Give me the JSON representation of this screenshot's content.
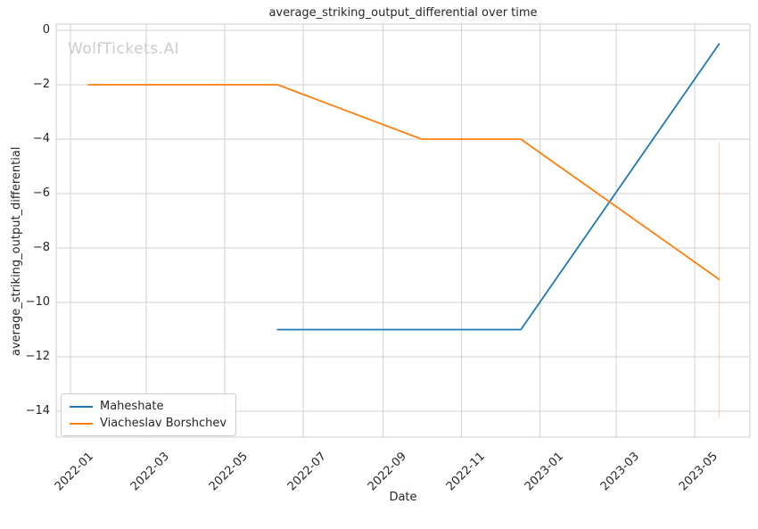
{
  "figure": {
    "watermark": "WolfTickets.AI"
  },
  "chart_data": {
    "type": "line",
    "title": "average_striking_output_differential over time",
    "xlabel": "Date",
    "ylabel": "average_striking_output_differential",
    "x_tick_labels": [
      "2022-01",
      "2022-03",
      "2022-05",
      "2022-07",
      "2022-09",
      "2022-11",
      "2023-01",
      "2023-03",
      "2023-05"
    ],
    "y_ticks": [
      0,
      -2,
      -4,
      -6,
      -8,
      -10,
      -12,
      -14
    ],
    "xlim": [
      "2021-12-21",
      "2023-06-13"
    ],
    "ylim": [
      -14.95,
      0.23
    ],
    "grid": true,
    "legend_position": "lower left",
    "series": [
      {
        "name": "Maheshate",
        "color": "#1f77b4",
        "points": [
          {
            "date": "2022-06-11",
            "value": -11
          },
          {
            "date": "2022-12-17",
            "value": -11
          },
          {
            "date": "2023-05-20",
            "value": -0.5
          }
        ]
      },
      {
        "name": "Viacheslav Borshchev",
        "color": "#ff7f0e",
        "points": [
          {
            "date": "2022-01-15",
            "value": -2
          },
          {
            "date": "2022-06-11",
            "value": -2
          },
          {
            "date": "2022-10-01",
            "value": -4
          },
          {
            "date": "2022-12-17",
            "value": -4
          },
          {
            "date": "2023-05-20",
            "value": -9.15
          }
        ],
        "error_bar": {
          "date": "2023-05-20",
          "high": -4.1,
          "low": -14.25
        }
      }
    ],
    "colors": {
      "grid": "#d2d2d2",
      "spine": "#cccccc",
      "text": "#262626",
      "watermark": "#cbcbcb"
    }
  }
}
